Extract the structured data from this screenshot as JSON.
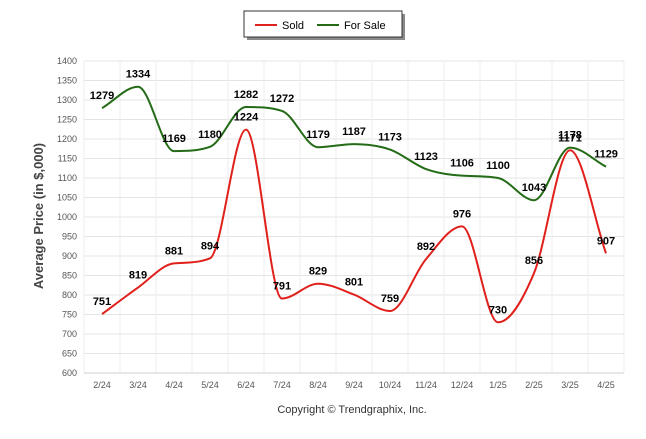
{
  "chart_data": {
    "type": "line",
    "categories": [
      "2/24",
      "3/24",
      "4/24",
      "5/24",
      "6/24",
      "7/24",
      "8/24",
      "9/24",
      "10/24",
      "11/24",
      "12/24",
      "1/25",
      "2/25",
      "3/25",
      "4/25"
    ],
    "series": [
      {
        "name": "Sold",
        "color": "#e0201b",
        "values": [
          751,
          819,
          881,
          894,
          1224,
          791,
          829,
          801,
          759,
          892,
          976,
          730,
          856,
          1171,
          907
        ]
      },
      {
        "name": "For Sale",
        "color": "#236b16",
        "values": [
          1279,
          1334,
          1169,
          1180,
          1282,
          1272,
          1179,
          1187,
          1173,
          1123,
          1106,
          1100,
          1043,
          1178,
          1129
        ]
      }
    ],
    "ylabel": "Average Price (in $,000)",
    "ylim": [
      600,
      1400
    ],
    "ytick_step": 50,
    "grid": true,
    "legend": "top-center",
    "smooth": true
  },
  "credit": "Copyright © Trendgraphix, Inc."
}
